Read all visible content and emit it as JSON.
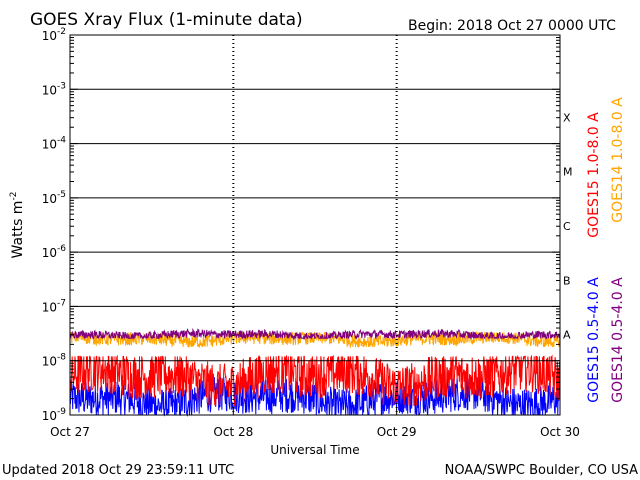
{
  "chart_data": {
    "type": "line",
    "title": "GOES Xray Flux (1-minute data)",
    "begin_label": "Begin:  2018 Oct 27 0000 UTC",
    "xlabel": "Universal Time",
    "ylabel_base": "Watts m",
    "ylabel_exp": "-2",
    "x_ticks": [
      "Oct 27",
      "Oct 28",
      "Oct 29",
      "Oct 30"
    ],
    "x_range_days": [
      0,
      3
    ],
    "y_scale": "log",
    "y_range": [
      1e-09,
      0.01
    ],
    "y_tick_exponents": [
      -9,
      -8,
      -7,
      -6,
      -5,
      -4,
      -3,
      -2
    ],
    "y_tick_base": "10",
    "flare_classes": [
      {
        "label": "A",
        "level_exp": -8
      },
      {
        "label": "B",
        "level_exp": -7
      },
      {
        "label": "C",
        "level_exp": -6
      },
      {
        "label": "M",
        "level_exp": -5
      },
      {
        "label": "X",
        "level_exp": -4
      }
    ],
    "grid": "horizontal lines at each decade, dotted vertical lines at day boundaries",
    "series": [
      {
        "name": "GOES15 1.0-8.0 A",
        "color": "#ff0000",
        "typical_flux": 5e-09,
        "range": [
          1.5e-09,
          1.2e-08
        ]
      },
      {
        "name": "GOES14 1.0-8.0 A",
        "color": "#ffa500",
        "typical_flux": 2.5e-08,
        "range": [
          1.8e-08,
          3.3e-08
        ]
      },
      {
        "name": "GOES15 0.5-4.0 A",
        "color": "#0000ff",
        "typical_flux": 2e-09,
        "range": [
          1e-09,
          5e-09
        ]
      },
      {
        "name": "GOES14 0.5-4.0 A",
        "color": "#800080",
        "typical_flux": 3e-08,
        "range": [
          2.6e-08,
          3.8e-08
        ]
      }
    ],
    "legend_position": "right, vertical"
  },
  "footer": {
    "updated": "Updated 2018 Oct 29 23:59:11 UTC",
    "credit": "NOAA/SWPC Boulder, CO USA"
  }
}
